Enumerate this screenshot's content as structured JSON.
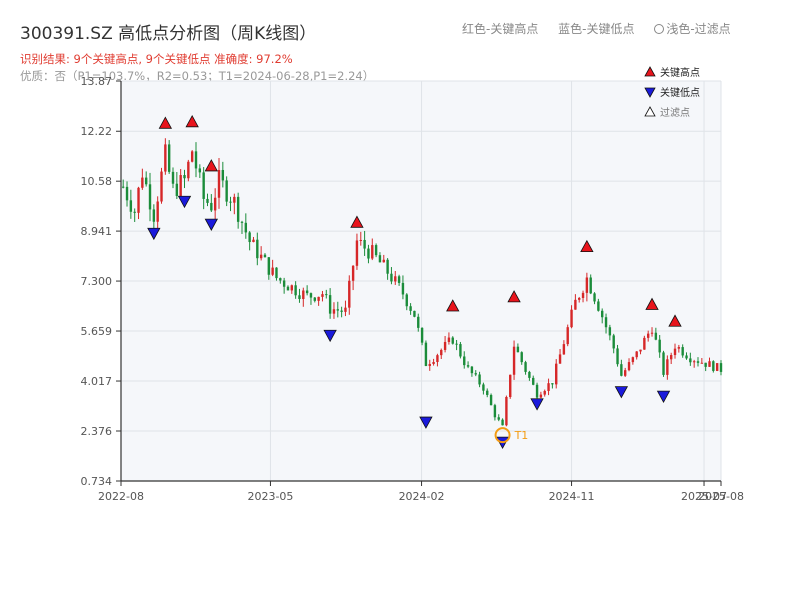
{
  "header": {
    "title": "300391.SZ 高低点分析图（周K线图）",
    "subtitle": "识别结果: 9个关键高点, 9个关键低点   准确度: 97.2%",
    "quality": "优质：否（P1=103.7%，R2=0.53；T1=2024-06-28,P1=2.24）",
    "top_note_red": "红色-关键高点",
    "top_note_blue": "蓝色-关键低点",
    "top_note_gray": "浅色-过滤点"
  },
  "colors": {
    "up": "#d62728",
    "down": "#1b8c3a",
    "high_marker": "#e8141c",
    "low_marker": "#1a1adb",
    "t1_marker": "#f39c12",
    "plot_bg": "#f5f7fa",
    "grid": "#dfe3e8"
  },
  "chart_data": {
    "type": "candlestick",
    "y_ticks": [
      "0.734",
      "2.376",
      "4.017",
      "5.659",
      "7.300",
      "8.941",
      "10.58",
      "12.22",
      "13.87"
    ],
    "x_ticks": [
      "2022-08",
      "2023-05",
      "2024-02",
      "2024-11",
      "2025-07",
      "2025-08"
    ],
    "ylim": [
      0.734,
      13.87
    ],
    "x_range": [
      "2022-08",
      "2025-08"
    ],
    "grid": true,
    "legend": {
      "placement": "top-right",
      "items": [
        {
          "label": "关键高点",
          "symbol": "up-triangle-red"
        },
        {
          "label": "关键低点",
          "symbol": "down-triangle-blue"
        },
        {
          "label": "过滤点",
          "symbol": "up-triangle-white"
        }
      ]
    },
    "t1": {
      "label": "T1",
      "date": "2024-06-28",
      "price": 2.24
    },
    "key_highs": [
      {
        "date": "2022-10-21",
        "price": 12.25
      },
      {
        "date": "2022-12-09",
        "price": 12.3
      },
      {
        "date": "2023-01-13",
        "price": 10.85
      },
      {
        "date": "2023-10-06",
        "price": 9.0
      },
      {
        "date": "2024-03-29",
        "price": 6.25
      },
      {
        "date": "2024-07-19",
        "price": 6.55
      },
      {
        "date": "2024-11-29",
        "price": 8.2
      },
      {
        "date": "2025-03-28",
        "price": 6.3
      },
      {
        "date": "2025-05-09",
        "price": 5.75
      }
    ],
    "key_lows": [
      {
        "date": "2022-09-30",
        "price": 9.1
      },
      {
        "date": "2022-11-25",
        "price": 10.15
      },
      {
        "date": "2023-01-13",
        "price": 9.4
      },
      {
        "date": "2023-08-18",
        "price": 5.75
      },
      {
        "date": "2024-02-09",
        "price": 2.9
      },
      {
        "date": "2024-06-28",
        "price": 2.24
      },
      {
        "date": "2024-08-30",
        "price": 3.5
      },
      {
        "date": "2025-01-31",
        "price": 3.9
      },
      {
        "date": "2025-04-18",
        "price": 3.75
      }
    ],
    "close_path": [
      [
        "2022-08-05",
        10.4
      ],
      [
        "2022-08-26",
        9.6
      ],
      [
        "2022-09-09",
        10.9
      ],
      [
        "2022-09-30",
        9.5
      ],
      [
        "2022-10-21",
        11.4
      ],
      [
        "2022-11-04",
        10.3
      ],
      [
        "2022-11-25",
        10.6
      ],
      [
        "2022-12-09",
        11.6
      ],
      [
        "2022-12-30",
        10.0
      ],
      [
        "2023-01-13",
        9.8
      ],
      [
        "2023-01-27",
        10.6
      ],
      [
        "2023-02-24",
        9.9
      ],
      [
        "2023-03-24",
        8.6
      ],
      [
        "2023-04-21",
        7.9
      ],
      [
        "2023-05-12",
        7.4
      ],
      [
        "2023-06-09",
        7.1
      ],
      [
        "2023-07-07",
        6.8
      ],
      [
        "2023-08-04",
        6.9
      ],
      [
        "2023-08-18",
        6.4
      ],
      [
        "2023-09-15",
        6.3
      ],
      [
        "2023-10-06",
        8.6
      ],
      [
        "2023-11-03",
        8.2
      ],
      [
        "2023-12-01",
        7.6
      ],
      [
        "2023-12-29",
        6.9
      ],
      [
        "2024-01-19",
        6.2
      ],
      [
        "2024-02-09",
        4.6
      ],
      [
        "2024-02-23",
        4.8
      ],
      [
        "2024-03-29",
        5.4
      ],
      [
        "2024-04-26",
        4.4
      ],
      [
        "2024-05-24",
        3.8
      ],
      [
        "2024-06-14",
        2.9
      ],
      [
        "2024-06-28",
        2.5
      ],
      [
        "2024-07-19",
        5.2
      ],
      [
        "2024-08-16",
        4.1
      ],
      [
        "2024-08-30",
        3.6
      ],
      [
        "2024-09-27",
        4.0
      ],
      [
        "2024-10-18",
        5.3
      ],
      [
        "2024-11-08",
        6.6
      ],
      [
        "2024-11-29",
        7.4
      ],
      [
        "2024-12-20",
        6.5
      ],
      [
        "2025-01-17",
        5.1
      ],
      [
        "2025-01-31",
        4.2
      ],
      [
        "2025-02-28",
        4.9
      ],
      [
        "2025-03-28",
        5.8
      ],
      [
        "2025-04-18",
        4.3
      ],
      [
        "2025-05-09",
        5.2
      ],
      [
        "2025-06-06",
        4.8
      ],
      [
        "2025-07-04",
        4.6
      ],
      [
        "2025-08-01",
        4.4
      ]
    ]
  }
}
